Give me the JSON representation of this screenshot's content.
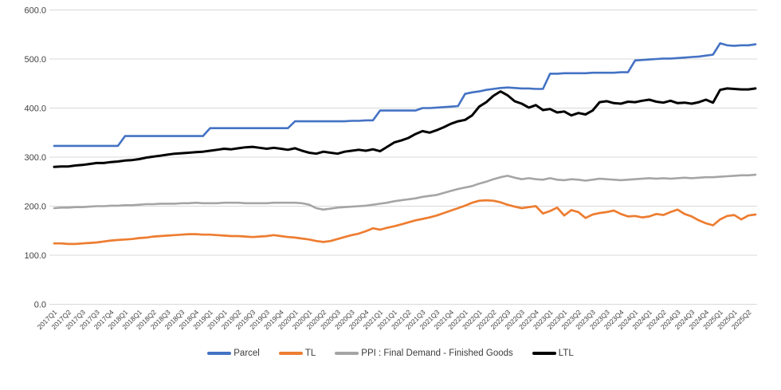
{
  "chart_data": {
    "type": "line",
    "title": "",
    "legend_position": "bottom",
    "gridlines": "horizontal",
    "y_axis": {
      "min": 0,
      "max": 600,
      "tick_interval": 100,
      "tick_labels": [
        "0.0",
        "100.0",
        "200.0",
        "300.0",
        "400.0",
        "500.0",
        "600.0"
      ]
    },
    "x_axis": {
      "points_per_tick": 2,
      "tick_labels": [
        "2017Q1",
        "2017Q2",
        "2017Q3",
        "2017Q3",
        "2017Q4",
        "2018Q1",
        "2018Q1",
        "2018Q2",
        "2018Q3",
        "2018Q3",
        "2018Q4",
        "2019Q1",
        "2019Q1",
        "2019Q2",
        "2019Q3",
        "2019Q3",
        "2019Q4",
        "2020Q1",
        "2020Q1",
        "2020Q2",
        "2020Q3",
        "2020Q3",
        "2020Q4",
        "2021Q1",
        "2021Q1",
        "2021Q2",
        "2021Q3",
        "2021Q3",
        "2021Q4",
        "2022Q1",
        "2022Q1",
        "2022Q2",
        "2022Q3",
        "2022Q3",
        "2022Q4",
        "2023Q1",
        "2023Q1",
        "2023Q2",
        "2023Q3",
        "2023Q3",
        "2023Q4",
        "2024Q1",
        "2024Q1",
        "2024Q2",
        "2024Q3",
        "2024Q3",
        "2024Q4",
        "2025Q1",
        "2025Q1",
        "2025Q2"
      ]
    },
    "series": [
      {
        "name": "Parcel",
        "color": "#4472C4",
        "stroke_width": 2.6,
        "values": [
          323,
          323,
          323,
          323,
          323,
          323,
          323,
          323,
          323,
          323,
          343,
          343,
          343,
          343,
          343,
          343,
          343,
          343,
          343,
          343,
          343,
          343,
          359,
          359,
          359,
          359,
          359,
          359,
          359,
          359,
          359,
          359,
          359,
          359,
          373,
          373,
          373,
          373,
          373,
          373,
          373,
          373,
          374,
          374,
          375,
          375,
          395,
          395,
          395,
          395,
          395,
          395,
          400,
          400,
          401,
          402,
          403,
          404,
          429,
          432,
          434,
          437,
          439,
          441,
          442,
          441,
          440,
          440,
          439,
          439,
          470,
          470,
          471,
          471,
          471,
          471,
          472,
          472,
          472,
          472,
          473,
          473,
          497,
          498,
          499,
          500,
          501,
          501,
          502,
          503,
          504,
          505,
          507,
          509,
          532,
          528,
          527,
          528,
          528,
          530
        ]
      },
      {
        "name": "TL",
        "color": "#ED7D31",
        "stroke_width": 2.7,
        "values": [
          124,
          124,
          123,
          123,
          124,
          125,
          126,
          128,
          130,
          131,
          132,
          133,
          135,
          136,
          138,
          139,
          140,
          141,
          142,
          143,
          143,
          142,
          142,
          141,
          140,
          139,
          139,
          138,
          137,
          138,
          139,
          141,
          139,
          137,
          136,
          134,
          132,
          129,
          127,
          129,
          133,
          137,
          141,
          144,
          149,
          155,
          152,
          156,
          159,
          163,
          167,
          171,
          174,
          177,
          181,
          186,
          191,
          196,
          201,
          207,
          211,
          212,
          211,
          208,
          203,
          199,
          196,
          198,
          200,
          185,
          190,
          197,
          181,
          192,
          188,
          176,
          183,
          186,
          188,
          191,
          184,
          179,
          180,
          177,
          179,
          184,
          182,
          188,
          193,
          184,
          179,
          171,
          165,
          161,
          173,
          180,
          182,
          173,
          181,
          183
        ]
      },
      {
        "name": "PPI : Final Demand - Finished Goods",
        "color": "#A5A5A5",
        "stroke_width": 2.6,
        "values": [
          196,
          197,
          197,
          198,
          198,
          199,
          200,
          200,
          201,
          201,
          202,
          202,
          203,
          204,
          204,
          205,
          205,
          205,
          206,
          206,
          207,
          206,
          206,
          206,
          207,
          207,
          207,
          206,
          206,
          206,
          206,
          207,
          207,
          207,
          207,
          206,
          203,
          196,
          193,
          195,
          197,
          198,
          199,
          200,
          201,
          203,
          205,
          207,
          210,
          212,
          214,
          216,
          219,
          221,
          223,
          227,
          231,
          235,
          238,
          241,
          246,
          250,
          255,
          259,
          262,
          258,
          255,
          257,
          255,
          254,
          257,
          254,
          253,
          255,
          254,
          252,
          254,
          256,
          255,
          254,
          253,
          254,
          255,
          256,
          257,
          256,
          257,
          256,
          257,
          258,
          257,
          258,
          259,
          259,
          260,
          261,
          262,
          263,
          263,
          264
        ]
      },
      {
        "name": "LTL",
        "color": "#000000",
        "stroke_width": 3,
        "values": [
          280,
          281,
          281,
          283,
          284,
          286,
          288,
          288,
          290,
          291,
          293,
          294,
          296,
          299,
          301,
          303,
          305,
          307,
          308,
          309,
          310,
          311,
          313,
          315,
          317,
          316,
          318,
          320,
          321,
          319,
          317,
          319,
          317,
          315,
          318,
          313,
          309,
          307,
          311,
          309,
          307,
          311,
          313,
          315,
          313,
          316,
          312,
          321,
          330,
          334,
          339,
          347,
          353,
          350,
          355,
          361,
          368,
          373,
          376,
          385,
          403,
          412,
          425,
          434,
          426,
          414,
          409,
          401,
          406,
          396,
          398,
          391,
          393,
          385,
          390,
          387,
          395,
          412,
          414,
          410,
          409,
          413,
          412,
          415,
          417,
          413,
          411,
          415,
          410,
          411,
          409,
          412,
          417,
          411,
          437,
          440,
          439,
          438,
          438,
          440
        ]
      }
    ]
  }
}
